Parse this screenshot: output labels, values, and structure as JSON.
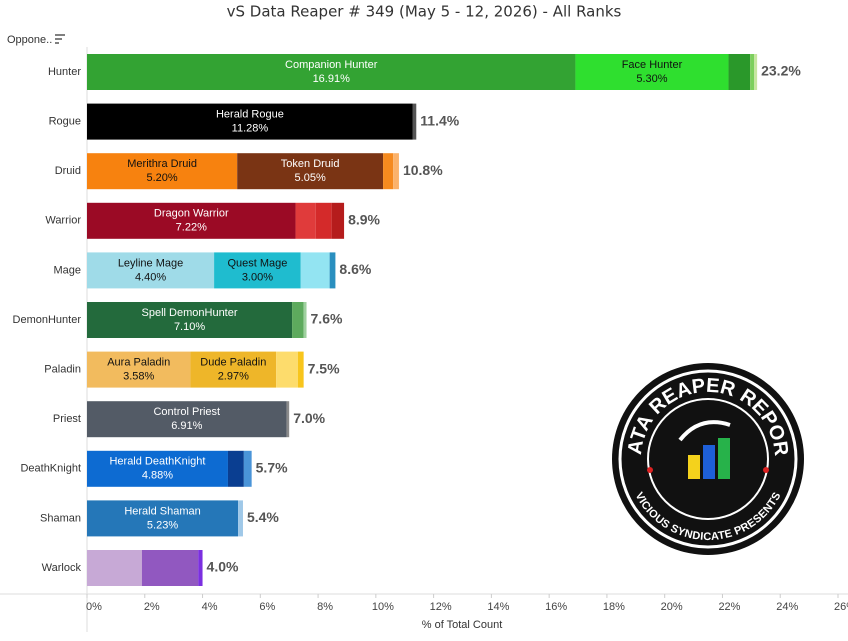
{
  "chart_data": {
    "type": "stacked-bar",
    "orientation": "horizontal",
    "title": "vS Data Reaper # 349 (May 5 - 12, 2026) - All Ranks",
    "y_header": "Oppone..",
    "x_label": "% of Total Count",
    "xlim": [
      0,
      26
    ],
    "xticks": [
      {
        "value": 0,
        "label": "0%"
      },
      {
        "value": 2,
        "label": "2%"
      },
      {
        "value": 4,
        "label": "4%"
      },
      {
        "value": 6,
        "label": "6%"
      },
      {
        "value": 8,
        "label": "8%"
      },
      {
        "value": 10,
        "label": "10%"
      },
      {
        "value": 12,
        "label": "12%"
      },
      {
        "value": 14,
        "label": "14%"
      },
      {
        "value": 16,
        "label": "16%"
      },
      {
        "value": 18,
        "label": "18%"
      },
      {
        "value": 20,
        "label": "20%"
      },
      {
        "value": 22,
        "label": "22%"
      },
      {
        "value": 24,
        "label": "24%"
      },
      {
        "value": 26,
        "label": "26%"
      }
    ],
    "categories": [
      "Hunter",
      "Rogue",
      "Druid",
      "Warrior",
      "Mage",
      "DemonHunter",
      "Paladin",
      "Priest",
      "DeathKnight",
      "Shaman",
      "Warlock"
    ],
    "totals": [
      {
        "value": 23.2,
        "label": "23.2%"
      },
      {
        "value": 11.4,
        "label": "11.4%"
      },
      {
        "value": 10.8,
        "label": "10.8%"
      },
      {
        "value": 8.9,
        "label": "8.9%"
      },
      {
        "value": 8.6,
        "label": "8.6%"
      },
      {
        "value": 7.6,
        "label": "7.6%"
      },
      {
        "value": 7.5,
        "label": "7.5%"
      },
      {
        "value": 7.0,
        "label": "7.0%"
      },
      {
        "value": 5.7,
        "label": "5.7%"
      },
      {
        "value": 5.4,
        "label": "5.4%"
      },
      {
        "value": 4.0,
        "label": "4.0%"
      }
    ],
    "bars": [
      {
        "segments": [
          {
            "label": "Companion Hunter",
            "value": 16.91,
            "value_label": "16.91%",
            "color": "#33a333"
          },
          {
            "label": "Face Hunter",
            "value": 5.3,
            "value_label": "5.30%",
            "color": "#2fdf2f"
          },
          {
            "value": 0.75,
            "color": "#2a982a"
          },
          {
            "value": 0.14,
            "color": "#7ccf5d"
          },
          {
            "value": 0.1,
            "color": "#c7e6a0"
          }
        ]
      },
      {
        "segments": [
          {
            "label": "Herald Rogue",
            "value": 11.28,
            "value_label": "11.28%",
            "color": "#000000"
          },
          {
            "value": 0.12,
            "color": "#555555"
          }
        ]
      },
      {
        "segments": [
          {
            "label": "Merithra Druid",
            "value": 5.2,
            "value_label": "5.20%",
            "color": "#f7820f"
          },
          {
            "label": "Token Druid",
            "value": 5.05,
            "value_label": "5.05%",
            "color": "#7a3414"
          },
          {
            "value": 0.35,
            "color": "#f58a1f"
          },
          {
            "value": 0.2,
            "color": "#fbb26b"
          }
        ]
      },
      {
        "segments": [
          {
            "label": "Dragon Warrior",
            "value": 7.22,
            "value_label": "7.22%",
            "color": "#9b0a25"
          },
          {
            "value": 0.7,
            "color": "#e03b3b"
          },
          {
            "value": 0.55,
            "color": "#d42a2a"
          },
          {
            "value": 0.43,
            "color": "#b51c1c"
          }
        ]
      },
      {
        "segments": [
          {
            "label": "Leyline Mage",
            "value": 4.4,
            "value_label": "4.40%",
            "color": "#9fdbe8"
          },
          {
            "label": "Quest Mage",
            "value": 3.0,
            "value_label": "3.00%",
            "color": "#1fbccf"
          },
          {
            "value": 1.0,
            "color": "#93e4f2"
          },
          {
            "value": 0.2,
            "color": "#2a8fbf"
          }
        ]
      },
      {
        "segments": [
          {
            "label": "Spell DemonHunter",
            "value": 7.1,
            "value_label": "7.10%",
            "color": "#236a3c"
          },
          {
            "value": 0.4,
            "color": "#5daa5d"
          },
          {
            "value": 0.1,
            "color": "#9ed09e"
          }
        ]
      },
      {
        "segments": [
          {
            "label": "Aura Paladin",
            "value": 3.58,
            "value_label": "3.58%",
            "color": "#f2bb5e"
          },
          {
            "label": "Dude Paladin",
            "value": 2.97,
            "value_label": "2.97%",
            "color": "#eeb629"
          },
          {
            "value": 0.75,
            "color": "#fddc6c"
          },
          {
            "value": 0.2,
            "color": "#f8c51c"
          }
        ]
      },
      {
        "segments": [
          {
            "label": "Control Priest",
            "value": 6.91,
            "value_label": "6.91%",
            "color": "#535b66"
          },
          {
            "value": 0.09,
            "color": "#8a8a8a"
          }
        ]
      },
      {
        "segments": [
          {
            "label": "Herald DeathKnight",
            "value": 4.88,
            "value_label": "4.88%",
            "color": "#0d6bd2"
          },
          {
            "value": 0.55,
            "color": "#0a3e91"
          },
          {
            "value": 0.27,
            "color": "#4a94d8"
          }
        ]
      },
      {
        "segments": [
          {
            "label": "Herald Shaman",
            "value": 5.23,
            "value_label": "5.23%",
            "color": "#2577b8"
          },
          {
            "value": 0.17,
            "color": "#9fc8e8"
          }
        ]
      },
      {
        "segments": [
          {
            "value": 1.9,
            "color": "#c7a9d6"
          },
          {
            "value": 1.95,
            "color": "#9158c0"
          },
          {
            "value": 0.15,
            "color": "#7b2fe0"
          }
        ]
      }
    ]
  },
  "logo": {
    "title": "DATA REAPER REPORT",
    "subtitle": "VICIOUS SYNDICATE PRESENTS"
  }
}
